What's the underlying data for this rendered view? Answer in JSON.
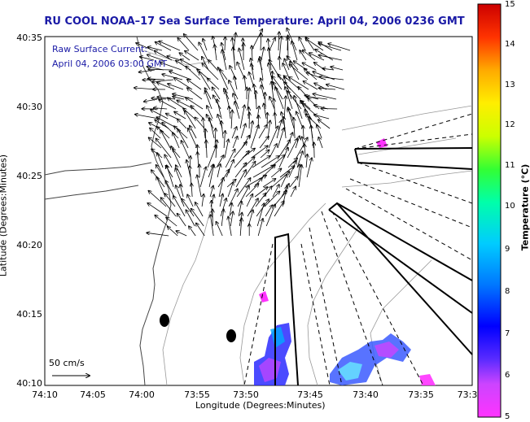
{
  "title": "RU COOL  NOAA–17  Sea Surface Temperature:  April 04, 2006 0236 GMT",
  "overlay": {
    "line1": "Raw Surface Current:",
    "line2": "April 04, 2006 03:00 GMT"
  },
  "axes": {
    "xlabel": "Longitude (Degrees:Minutes)",
    "ylabel": "Latitude (Degrees:Minutes)",
    "xticks": [
      "74:10",
      "74:05",
      "74:00",
      "73:55",
      "73:50",
      "73:45",
      "73:40",
      "73:35",
      "73:3"
    ],
    "yticks": [
      "40:35",
      "40:30",
      "40:25",
      "40:20",
      "40:15",
      "40:10"
    ]
  },
  "scale_label": "50 cm/s",
  "colorbar": {
    "label": "Temperature (°C)",
    "ticks": [
      "15",
      "14",
      "13",
      "12",
      "11",
      "10",
      "9",
      "8",
      "7",
      "6",
      "5"
    ],
    "min": 5,
    "max": 15
  }
}
